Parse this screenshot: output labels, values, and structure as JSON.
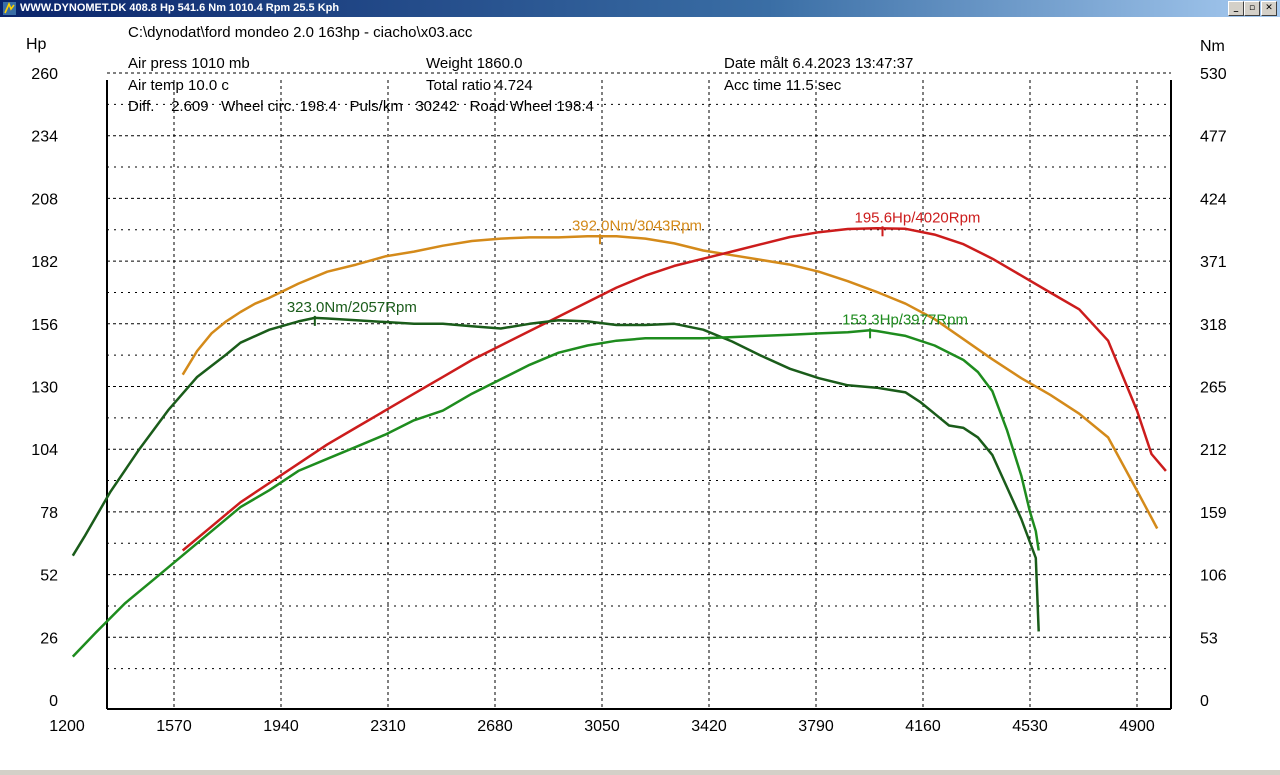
{
  "window": {
    "title": "WWW.DYNOMET.DK  408.8 Hp 541.6 Nm 1010.4 Rpm 25.5 Kph",
    "buttons": {
      "minimize": "_",
      "maximize": "▫",
      "close": "✕"
    }
  },
  "header": {
    "file_path": "C:\\dynodat\\ford mondeo 2.0 163hp - ciacho\\x03.acc",
    "air_press": "Air press  1010 mb",
    "air_temp": "Air temp  10.0 c",
    "weight": "Weight   1860.0",
    "total_ratio": "Total ratio 4.724",
    "date": "Date målt 6.4.2023 13:47:37",
    "acc_time": "Acc time   11.5 sec",
    "diff_line": "Diff.    2.609   Wheel circ. 198.4   Puls/km   30242   Road Wheel 198.4"
  },
  "chart_data": {
    "type": "line",
    "xlabel": "",
    "y_left_label": "Hp",
    "y_right_label": "Nm",
    "x_ticks": [
      1200,
      1570,
      1940,
      2310,
      2680,
      3050,
      3420,
      3790,
      4160,
      4530,
      4900
    ],
    "y_left_ticks": [
      0,
      26,
      52,
      78,
      104,
      130,
      156,
      182,
      208,
      234,
      260
    ],
    "y_right_ticks": [
      0,
      53,
      106,
      159,
      212,
      265,
      318,
      371,
      424,
      477,
      530
    ],
    "xlim": [
      1200,
      5000
    ],
    "y_left_lim": [
      0,
      260
    ],
    "y_right_lim": [
      0,
      530
    ],
    "grid": true,
    "series": [
      {
        "color": "#d48a1a",
        "axis": "right",
        "unit": "Nm",
        "x": [
          1600,
          1650,
          1700,
          1750,
          1800,
          1850,
          1900,
          2000,
          2100,
          2200,
          2300,
          2400,
          2500,
          2600,
          2700,
          2800,
          2900,
          3000,
          3100,
          3200,
          3300,
          3400,
          3500,
          3600,
          3700,
          3800,
          3900,
          4000,
          4100,
          4200,
          4300,
          4400,
          4500,
          4600,
          4700,
          4800,
          4900,
          4970
        ],
        "y": [
          275,
          295,
          310,
          320,
          328,
          335,
          340,
          352,
          362,
          368,
          375,
          379,
          384,
          388,
          390,
          391,
          391,
          392,
          392,
          390,
          386,
          380,
          376,
          372,
          368,
          362,
          354,
          345,
          335,
          322,
          305,
          288,
          272,
          258,
          242,
          222,
          177,
          145
        ]
      },
      {
        "color": "#cc1c1c",
        "axis": "left",
        "unit": "Hp",
        "x": [
          1600,
          1700,
          1800,
          1900,
          2000,
          2100,
          2200,
          2300,
          2400,
          2500,
          2600,
          2700,
          2800,
          2900,
          3000,
          3100,
          3200,
          3300,
          3400,
          3500,
          3600,
          3700,
          3800,
          3900,
          4000,
          4100,
          4200,
          4300,
          4400,
          4500,
          4600,
          4700,
          4800,
          4900,
          4950,
          5000
        ],
        "y": [
          62,
          72,
          82,
          90,
          98,
          106,
          113,
          120,
          127,
          134,
          141,
          147,
          153,
          159,
          165,
          171,
          176,
          180,
          183,
          186,
          189,
          192,
          194,
          195.3,
          195.6,
          195.4,
          193,
          189,
          183,
          176,
          169,
          162,
          149,
          120,
          102,
          95
        ]
      },
      {
        "color": "#1a5c1a",
        "axis": "right",
        "unit": "Nm",
        "x": [
          1220,
          1260,
          1350,
          1450,
          1550,
          1650,
          1750,
          1800,
          1900,
          2000,
          2057,
          2100,
          2200,
          2300,
          2400,
          2500,
          2600,
          2700,
          2800,
          2900,
          3000,
          3100,
          3200,
          3300,
          3400,
          3500,
          3600,
          3700,
          3800,
          3900,
          4000,
          4100,
          4150,
          4200,
          4250,
          4300,
          4350,
          4400,
          4450,
          4500,
          4550,
          4560
        ],
        "y": [
          122,
          138,
          176,
          212,
          245,
          273,
          292,
          302,
          313,
          320,
          323,
          322.5,
          321,
          319.5,
          318,
          318,
          316,
          314,
          318,
          321,
          320,
          317,
          317,
          318,
          313,
          303,
          291,
          280,
          272,
          266,
          264,
          260,
          252,
          242,
          232,
          230,
          222,
          207,
          180,
          153,
          120,
          58
        ]
      },
      {
        "color": "#1e8c1e",
        "axis": "left",
        "unit": "Hp",
        "x": [
          1220,
          1300,
          1400,
          1500,
          1600,
          1700,
          1800,
          1900,
          2000,
          2100,
          2200,
          2300,
          2400,
          2500,
          2600,
          2700,
          2800,
          2900,
          3000,
          3100,
          3200,
          3300,
          3400,
          3500,
          3600,
          3700,
          3800,
          3900,
          3977,
          4000,
          4100,
          4200,
          4250,
          4300,
          4350,
          4400,
          4450,
          4500,
          4530,
          4550,
          4560
        ],
        "y": [
          18,
          28,
          40,
          50,
          60,
          70,
          80,
          87,
          95,
          100,
          105,
          110,
          116,
          120,
          127,
          133,
          139,
          144,
          147,
          149,
          150,
          150,
          150,
          150.5,
          151,
          151.5,
          152,
          152.5,
          153.3,
          153,
          151,
          147,
          144,
          141,
          136,
          128,
          112,
          93,
          78,
          70,
          62
        ]
      }
    ],
    "annotations": [
      {
        "text": "392.0Nm/3043Rpm",
        "color": "#d48a1a"
      },
      {
        "text": "195.6Hp/4020Rpm",
        "color": "#cc1c1c"
      },
      {
        "text": "323.0Nm/2057Rpm",
        "color": "#1a5c1a"
      },
      {
        "text": "153.3Hp/3977Rpm",
        "color": "#1e8c1e"
      }
    ]
  }
}
